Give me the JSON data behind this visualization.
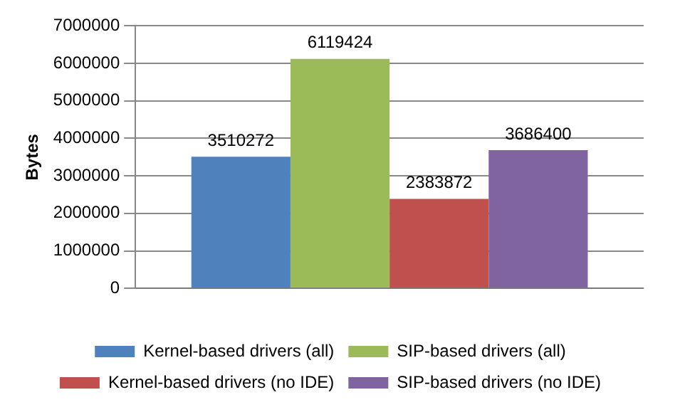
{
  "chart_data": {
    "type": "bar",
    "ylabel": "Bytes",
    "categories": [
      null
    ],
    "series": [
      {
        "name": "Kernel-based drivers (all)",
        "color": "#4f81bd",
        "values": [
          3510272
        ]
      },
      {
        "name": "SIP-based drivers (all)",
        "color": "#9bbb59",
        "values": [
          6119424
        ]
      },
      {
        "name": "Kernel-based drivers (no IDE)",
        "color": "#c0504d",
        "values": [
          2383872
        ]
      },
      {
        "name": "SIP-based drivers (no IDE)",
        "color": "#8064a2",
        "values": [
          3686400
        ]
      }
    ],
    "ylim": [
      0,
      7000000
    ],
    "yticks": [
      0,
      1000000,
      2000000,
      3000000,
      4000000,
      5000000,
      6000000,
      7000000
    ],
    "grid": "y",
    "legend": "bottom",
    "data_labels": true
  }
}
